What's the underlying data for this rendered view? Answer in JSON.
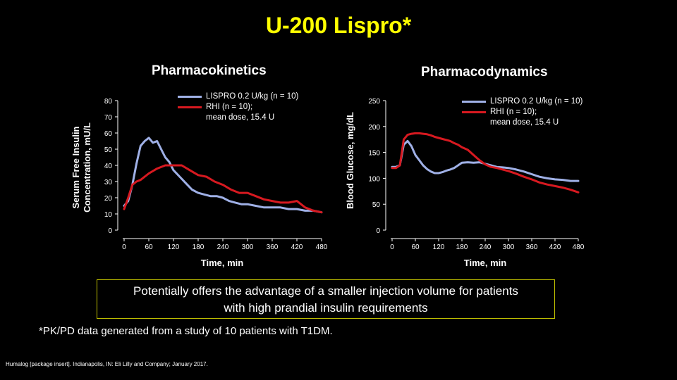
{
  "title": "U-200 Lispro*",
  "footnote": "*PK/PD data generated from a study of 10 patients with T1DM.",
  "reference": "Humalog [package insert]. Indianapolis, IN: Eli Lilly and Company; January 2017.",
  "callout": {
    "line1": "Potentially offers the advantage of a smaller injection volume for patients",
    "line2": "with high prandial insulin requirements"
  },
  "colors": {
    "lispro": "#9fb0e6",
    "rhi": "#d71920",
    "title": "#ffff00"
  },
  "chart_data": [
    {
      "type": "line",
      "title": "Pharmacokinetics",
      "xlabel": "Time, min",
      "ylabel_line1": "Serum Free Insulin",
      "ylabel_line2": "Concentration, mU/L",
      "xlim": [
        0,
        480
      ],
      "ylim": [
        0,
        80
      ],
      "xticks": [
        0,
        60,
        120,
        180,
        240,
        300,
        360,
        420,
        480
      ],
      "yticks": [
        0,
        10,
        20,
        30,
        40,
        50,
        60,
        70,
        80
      ],
      "legend_placement": "top-right",
      "grid": false,
      "series": [
        {
          "name": "LISPRO 0.2 U/kg (n = 10)",
          "color": "#9fb0e6",
          "x": [
            0,
            10,
            20,
            30,
            40,
            50,
            60,
            70,
            80,
            90,
            100,
            110,
            120,
            135,
            150,
            165,
            180,
            195,
            210,
            225,
            240,
            255,
            270,
            285,
            300,
            320,
            340,
            360,
            380,
            400,
            420,
            440,
            460,
            480
          ],
          "y": [
            15,
            18,
            28,
            41,
            52,
            55,
            57,
            54,
            55,
            50,
            45,
            42,
            37,
            33,
            29,
            25,
            23,
            22,
            21,
            21,
            20,
            18,
            17,
            16,
            16,
            15,
            14,
            14,
            14,
            13,
            13,
            12,
            12,
            11
          ]
        },
        {
          "name": "RHI (n = 10); mean dose, 15.4 U",
          "color": "#d71920",
          "x": [
            0,
            10,
            20,
            30,
            40,
            60,
            80,
            100,
            120,
            140,
            160,
            180,
            200,
            220,
            240,
            260,
            280,
            300,
            320,
            340,
            360,
            380,
            400,
            420,
            440,
            460,
            480
          ],
          "y": [
            13,
            20,
            28,
            30,
            31,
            35,
            38,
            40,
            40,
            40,
            37,
            34,
            33,
            30,
            28,
            25,
            23,
            23,
            21,
            19,
            18,
            17,
            17,
            18,
            14,
            12,
            11
          ]
        }
      ]
    },
    {
      "type": "line",
      "title": "Pharmacodynamics",
      "xlabel": "Time, min",
      "ylabel": "Blood Glucose, mg/dL",
      "xlim": [
        0,
        480
      ],
      "ylim": [
        0,
        250
      ],
      "xticks": [
        0,
        60,
        120,
        180,
        240,
        300,
        360,
        420,
        480
      ],
      "yticks": [
        0,
        50,
        100,
        150,
        200,
        250
      ],
      "legend_placement": "top-right",
      "grid": false,
      "series": [
        {
          "name": "LISPRO 0.2 U/kg (n = 10)",
          "color": "#9fb0e6",
          "x": [
            0,
            10,
            20,
            25,
            30,
            40,
            50,
            60,
            70,
            80,
            90,
            100,
            110,
            120,
            130,
            140,
            150,
            160,
            170,
            180,
            195,
            210,
            225,
            240,
            255,
            270,
            285,
            300,
            320,
            340,
            360,
            380,
            400,
            420,
            440,
            460,
            480
          ],
          "y": [
            122,
            122,
            125,
            145,
            165,
            172,
            162,
            145,
            135,
            125,
            118,
            113,
            110,
            110,
            112,
            115,
            117,
            120,
            125,
            130,
            131,
            130,
            131,
            128,
            125,
            122,
            121,
            120,
            117,
            113,
            108,
            103,
            100,
            98,
            97,
            95,
            95
          ]
        },
        {
          "name": "RHI (n = 10); mean dose, 15.4 U",
          "color": "#d71920",
          "x": [
            0,
            10,
            20,
            25,
            30,
            40,
            50,
            60,
            70,
            80,
            90,
            100,
            110,
            120,
            130,
            140,
            150,
            160,
            170,
            180,
            195,
            210,
            225,
            240,
            255,
            270,
            285,
            300,
            320,
            340,
            360,
            380,
            400,
            420,
            440,
            460,
            480
          ],
          "y": [
            120,
            120,
            125,
            150,
            175,
            184,
            186,
            187,
            187,
            186,
            185,
            183,
            180,
            178,
            176,
            174,
            172,
            168,
            165,
            160,
            155,
            145,
            135,
            127,
            122,
            120,
            117,
            114,
            109,
            103,
            98,
            92,
            88,
            85,
            82,
            78,
            73
          ]
        }
      ]
    }
  ],
  "legend": {
    "lispro_label": "LISPRO 0.2 U/kg (n = 10)",
    "rhi_label_line1": "RHI (n = 10);",
    "rhi_label_line2": "mean dose, 15.4 U"
  }
}
